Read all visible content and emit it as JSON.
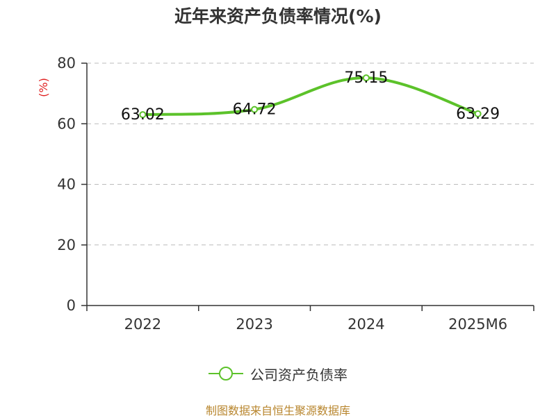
{
  "title": "近年来资产负债率情况(%)",
  "source": "制图数据来自恒生聚源数据库",
  "colors": {
    "series": "#5cc22a",
    "axis": "#333333",
    "grid": "#bbbbbb",
    "unit": "#e02020",
    "source": "#b8862e"
  },
  "chart_data": {
    "type": "line",
    "categories": [
      "2022",
      "2023",
      "2024",
      "2025M6"
    ],
    "series": [
      {
        "name": "公司资产负债率",
        "values": [
          63.02,
          64.72,
          75.15,
          63.29
        ],
        "labels": [
          "63.02",
          "64.72",
          "75.15",
          "63.29"
        ]
      }
    ],
    "ylabel": "(%)",
    "ylim": [
      0,
      80
    ],
    "yticks": [
      "0",
      "20",
      "40",
      "60",
      "80"
    ],
    "grid": true,
    "legend_position": "bottom"
  }
}
